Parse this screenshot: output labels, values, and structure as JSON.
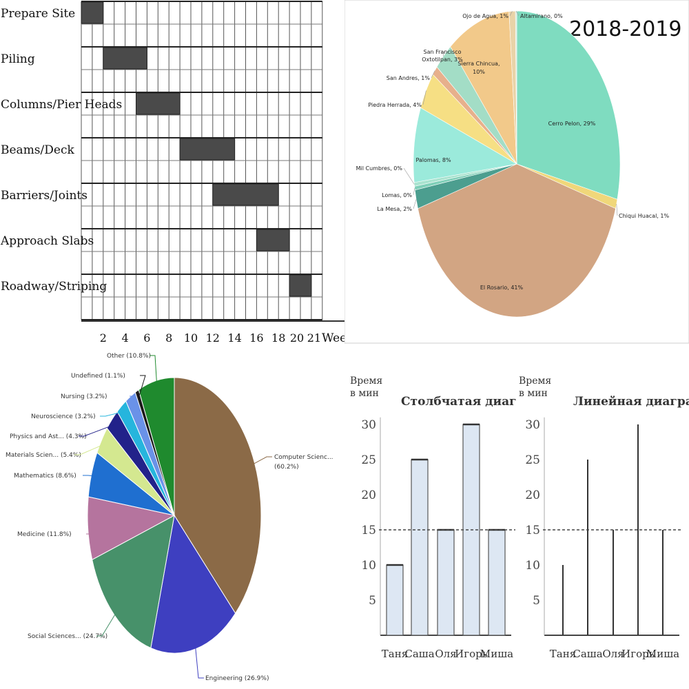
{
  "chart_data": [
    {
      "type": "gantt",
      "tasks": [
        {
          "name": "Prepare Site",
          "start": 0,
          "end": 2
        },
        {
          "name": "Piling",
          "start": 2,
          "end": 6
        },
        {
          "name": "Columns/Pier Heads",
          "start": 5,
          "end": 9
        },
        {
          "name": "Beams/Deck",
          "start": 9,
          "end": 14
        },
        {
          "name": "Barriers/Joints",
          "start": 12,
          "end": 18
        },
        {
          "name": "Approach Slabs",
          "start": 16,
          "end": 19
        },
        {
          "name": "Roadway/Striping",
          "start": 19,
          "end": 21
        }
      ],
      "xticks": [
        "2",
        "4",
        "6",
        "8",
        "10",
        "12",
        "14",
        "16",
        "18",
        "20",
        "21"
      ],
      "xlabel": "Weeks",
      "xlim": [
        0,
        22
      ]
    },
    {
      "type": "pie",
      "title": "2018-2019",
      "slices": [
        {
          "label": "Cerro Pelon, 29%",
          "value": 29,
          "color": "#7fdcc0"
        },
        {
          "label": "Chiqui Huacal, 1%",
          "value": 1,
          "color": "#f0d77a"
        },
        {
          "label": "El Rosario, 41%",
          "value": 41,
          "color": "#d2a583"
        },
        {
          "label": "La Mesa, 2%",
          "value": 2,
          "color": "#4c9e8f"
        },
        {
          "label": "Lomas, 0%",
          "value": 0.4,
          "color": "#7fcfb8"
        },
        {
          "label": "Mil Cumbres, 0%",
          "value": 0.4,
          "color": "#a9e3cf"
        },
        {
          "label": "Palomas, 8%",
          "value": 8,
          "color": "#9beadb"
        },
        {
          "label": "Piedra Herrada, 4%",
          "value": 4,
          "color": "#f6df84"
        },
        {
          "label": "San Andres, 1%",
          "value": 1,
          "color": "#e7b08c"
        },
        {
          "label": "San Francisco Oxtotilpan, 3%",
          "value": 3,
          "color": "#a3ddc6"
        },
        {
          "label": "Sierra Chincua, 10%",
          "value": 10,
          "color": "#f2c98a"
        },
        {
          "label": "Ojo de Agua, 1%",
          "value": 1,
          "color": "#e9d3a8"
        },
        {
          "label": "Altamirano, 0%",
          "value": 0.2,
          "color": "#cfe7d8"
        }
      ]
    },
    {
      "type": "pie",
      "slices": [
        {
          "label": "Computer Scienc...",
          "pct": "(60.2%)",
          "value": 60.2,
          "color": "#8b6a47"
        },
        {
          "label": "Engineering",
          "pct": "(26.9%)",
          "value": 26.9,
          "color": "#3e3fc0"
        },
        {
          "label": "Social Sciences...",
          "pct": "(24.7%)",
          "value": 24.7,
          "color": "#47916a"
        },
        {
          "label": "Medicine",
          "pct": "(11.8%)",
          "value": 11.8,
          "color": "#b5749e"
        },
        {
          "label": "Mathematics",
          "pct": "(8.6%)",
          "value": 8.6,
          "color": "#1f6fd0"
        },
        {
          "label": "Materials Scien...",
          "pct": "(5.4%)",
          "value": 5.4,
          "color": "#d4e890"
        },
        {
          "label": "Physics and Ast...",
          "pct": "(4.3%)",
          "value": 4.3,
          "color": "#22228a"
        },
        {
          "label": "Neuroscience",
          "pct": "(3.2%)",
          "value": 3.2,
          "color": "#26b5dd"
        },
        {
          "label": "Nursing",
          "pct": "(3.2%)",
          "value": 3.2,
          "color": "#6a92e8"
        },
        {
          "label": "Undefined",
          "pct": "(1.1%)",
          "value": 1.1,
          "color": "#1a1a1a"
        },
        {
          "label": "Other",
          "pct": "(10.8%)",
          "value": 10.8,
          "color": "#1f8a2e"
        }
      ]
    },
    {
      "type": "bar",
      "title": "Столбчатая диаграмма",
      "ylabel": "Время в мин",
      "categories": [
        "Таня",
        "Саша",
        "Оля",
        "Игорь",
        "Миша"
      ],
      "values": [
        10,
        25,
        15,
        30,
        15
      ],
      "reference_line": 15,
      "ylim": [
        0,
        30
      ],
      "yticks": [
        "5",
        "10",
        "15",
        "20",
        "25",
        "30"
      ]
    },
    {
      "type": "line",
      "title": "Линейная диаграмма",
      "ylabel": "Время в мин",
      "categories": [
        "Таня",
        "Саша",
        "Оля",
        "Игорь",
        "Миша"
      ],
      "values": [
        10,
        25,
        15,
        30,
        15
      ],
      "reference_line": 15,
      "ylim": [
        0,
        30
      ],
      "yticks": [
        "5",
        "10",
        "15",
        "20",
        "25",
        "30"
      ]
    }
  ]
}
